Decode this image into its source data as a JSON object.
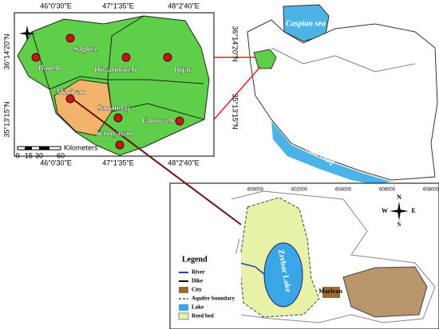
{
  "kurdistan_map": {
    "top_coordinates": [
      "46°0'30\"E",
      "47°1'35\"E",
      "48°2'40\"E"
    ],
    "bottom_coordinates": [
      "46°0'30\"E",
      "47°1'35\"E",
      "48°2'40\"E"
    ],
    "left_coordinates": [
      "36°14'20\"N",
      "35°13'15\"N"
    ],
    "cities": [
      "Baneh",
      "Saghez",
      "Diwandareh",
      "Bijar",
      "Marivan",
      "Sanandaj",
      "Ghorweh",
      "Kamyaran"
    ],
    "scale": {
      "ticks": [
        "0",
        "15",
        "30",
        "60"
      ],
      "unit": "Kilometers"
    }
  },
  "iran_map": {
    "right_coordinates": [
      "36°14'20\"N",
      "35°13'15\"N"
    ],
    "seas": [
      "Caspian sea",
      "Persian Gulf"
    ]
  },
  "aquifer_map": {
    "x_coordinates": [
      "600000",
      "602000",
      "604000",
      "606000",
      "608000"
    ],
    "compass": [
      "N",
      "E",
      "S",
      "W"
    ],
    "lake_label": "Zrebar Lake",
    "city_label": "Marivan",
    "legend": {
      "title": "Legend",
      "items": [
        "River",
        "Dike",
        "City",
        "Aquifer boundary",
        "Lake",
        "Reed bed"
      ]
    }
  }
}
